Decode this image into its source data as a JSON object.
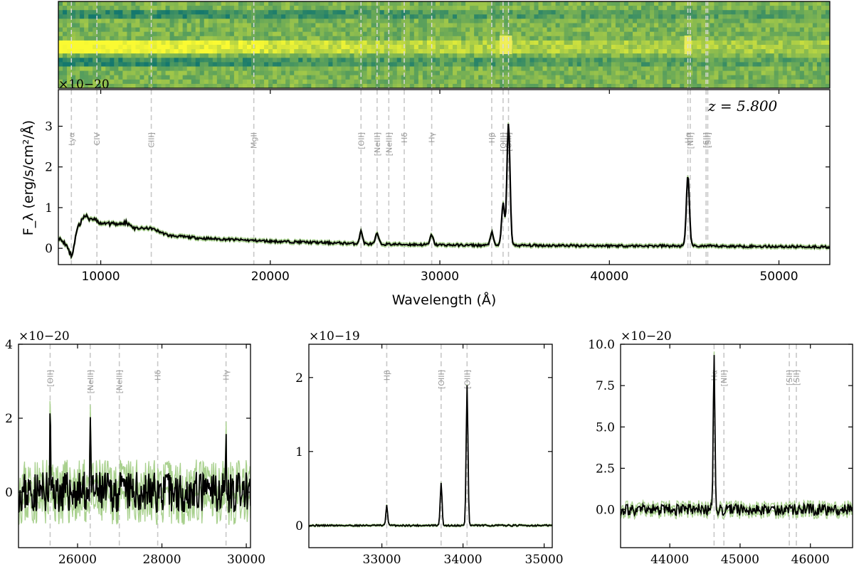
{
  "chart_data": [
    {
      "type": "heatmap",
      "panel": "spectrum-2d",
      "xlim": [
        7500,
        53000
      ],
      "colormap": "yellow-green (viridis-like)",
      "bright_rows": [
        "row-trace-center"
      ],
      "line_positions": [
        8268,
        9773,
        12980,
        19028,
        25350,
        26300,
        26990,
        27900,
        29520,
        33060,
        33730,
        34050,
        44630,
        44770,
        45700,
        45800
      ]
    },
    {
      "type": "line",
      "panel": "spectrum-1d-full",
      "title": "",
      "xlabel": "Wavelength (Å)",
      "ylabel": "F_λ (erg/s/cm²/Å)",
      "sci_offset": "×10−20",
      "xlim": [
        7500,
        53000
      ],
      "ylim": [
        -0.4,
        3.9
      ],
      "xticks": [
        "10000",
        "20000",
        "30000",
        "40000",
        "50000"
      ],
      "yticks": [
        "0",
        "1",
        "2",
        "3"
      ],
      "redshift_label": "z = 5.800",
      "lines": [
        {
          "name": "Lyα",
          "x": 8268
        },
        {
          "name": "CIV",
          "x": 9773
        },
        {
          "name": "CIII]",
          "x": 12980
        },
        {
          "name": "MgII",
          "x": 19028
        },
        {
          "name": "[OII]",
          "x": 25350
        },
        {
          "name": "[NeIII]",
          "x": 26300
        },
        {
          "name": "[NeIII]",
          "x": 26990
        },
        {
          "name": "Hδ",
          "x": 27900
        },
        {
          "name": "Hγ",
          "x": 29520
        },
        {
          "name": "Hβ",
          "x": 33060
        },
        {
          "name": "[OIII]",
          "x": 33730
        },
        {
          "name": "[OIII]",
          "x": 34050
        },
        {
          "name": "Hα",
          "x": 44630
        },
        {
          "name": "[NII]",
          "x": 44770
        },
        {
          "name": "[SII]",
          "x": 45700
        },
        {
          "name": "[SII]",
          "x": 45800
        }
      ],
      "continuum": {
        "x": [
          7500,
          8000,
          8300,
          8600,
          9000,
          9500,
          10000,
          10500,
          11000,
          11500,
          12000,
          13000,
          14000,
          16000,
          18000,
          20000,
          23000,
          26000,
          30000,
          33000,
          36000,
          40000,
          44000,
          48000,
          53000
        ],
        "y": [
          0.4,
          0.1,
          -0.3,
          0.65,
          1.1,
          1.05,
          0.85,
          0.9,
          0.85,
          0.9,
          0.7,
          0.7,
          0.45,
          0.35,
          0.3,
          0.25,
          0.2,
          0.15,
          0.12,
          0.1,
          0.1,
          0.09,
          0.08,
          0.07,
          0.05
        ]
      },
      "emission_peaks": [
        {
          "x": 25350,
          "y": 0.35
        },
        {
          "x": 26300,
          "y": 0.3
        },
        {
          "x": 29520,
          "y": 0.28
        },
        {
          "x": 33060,
          "y": 0.35
        },
        {
          "x": 33730,
          "y": 1.05
        },
        {
          "x": 34050,
          "y": 3.05
        },
        {
          "x": 44630,
          "y": 1.75
        }
      ]
    },
    {
      "type": "line",
      "panel": "zoom-oii-hgamma",
      "sci_offset": "×10−20",
      "xlim": [
        24600,
        30100
      ],
      "ylim": [
        -1.5,
        4
      ],
      "xticks": [
        "26000",
        "28000",
        "30000"
      ],
      "yticks": [
        "0",
        "2",
        "4"
      ],
      "lines": [
        {
          "name": "[OII]",
          "x": 25350
        },
        {
          "name": "[NeIII]",
          "x": 26300
        },
        {
          "name": "[NeIII]",
          "x": 26990
        },
        {
          "name": "Hδ",
          "x": 27900
        },
        {
          "name": "Hγ",
          "x": 29520
        }
      ],
      "emission_peaks": [
        {
          "x": 25350,
          "y": 2.1
        },
        {
          "x": 26300,
          "y": 2.2
        },
        {
          "x": 29520,
          "y": 1.95
        }
      ],
      "noise_amplitude": 0.55
    },
    {
      "type": "line",
      "panel": "zoom-hbeta-oiii",
      "sci_offset": "×10−19",
      "xlim": [
        32100,
        35100
      ],
      "ylim": [
        -0.3,
        2.45
      ],
      "xticks": [
        "33000",
        "34000",
        "35000"
      ],
      "yticks": [
        "0",
        "1",
        "2"
      ],
      "lines": [
        {
          "name": "Hβ",
          "x": 33060
        },
        {
          "name": "[OIII]",
          "x": 33730
        },
        {
          "name": "[OIII]",
          "x": 34050
        }
      ],
      "emission_peaks": [
        {
          "x": 33060,
          "y": 0.27
        },
        {
          "x": 33730,
          "y": 0.58
        },
        {
          "x": 34050,
          "y": 1.9
        }
      ],
      "noise_amplitude": 0.01
    },
    {
      "type": "line",
      "panel": "zoom-halpha",
      "sci_offset": "×10−20",
      "xlim": [
        43300,
        46600
      ],
      "ylim": [
        -2.3,
        10
      ],
      "xticks": [
        "44000",
        "45000",
        "46000"
      ],
      "yticks": [
        "0.0",
        "2.5",
        "5.0",
        "7.5",
        "10.0"
      ],
      "lines": [
        {
          "name": "Hα",
          "x": 44630
        },
        {
          "name": "[NII]",
          "x": 44770
        },
        {
          "name": "[SII]",
          "x": 45700
        },
        {
          "name": "[SII]",
          "x": 45800
        }
      ],
      "emission_peaks": [
        {
          "x": 44630,
          "y": 9.1
        }
      ],
      "noise_amplitude": 0.35
    }
  ]
}
